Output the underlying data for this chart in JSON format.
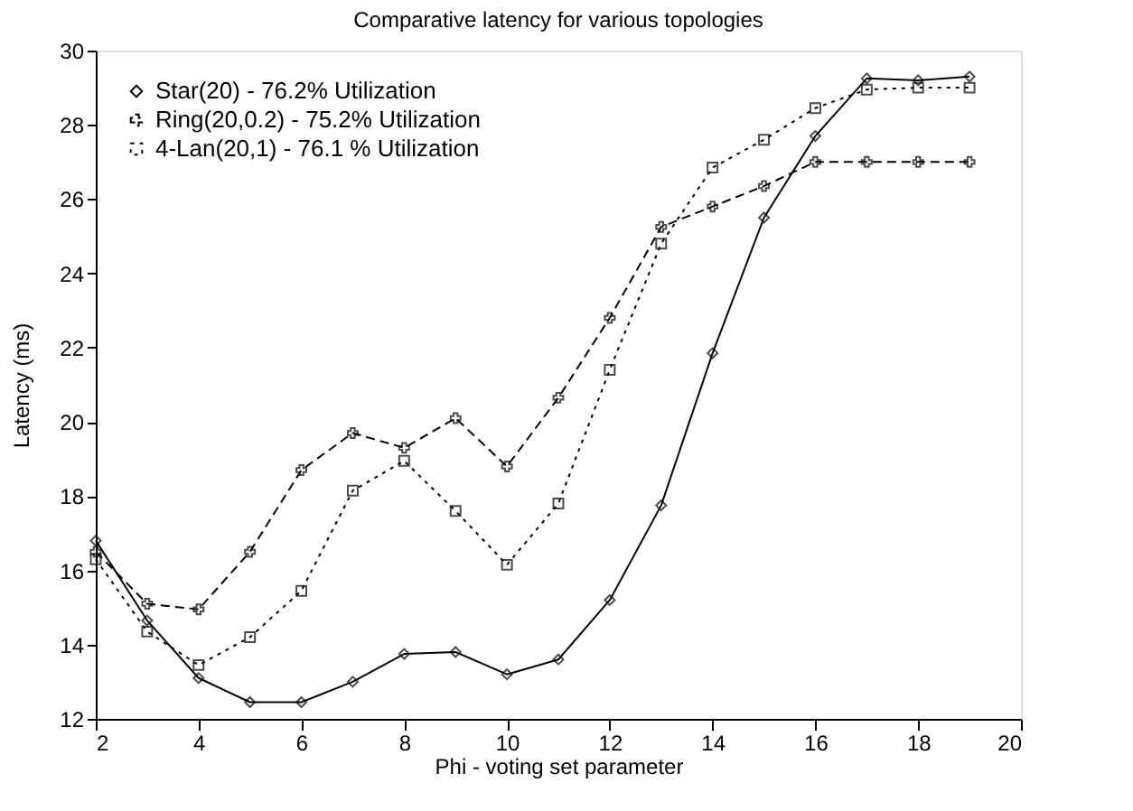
{
  "chart_data": {
    "type": "line",
    "title": "Comparative latency for various topologies",
    "xlabel": "Phi - voting set parameter",
    "ylabel": "Latency (ms)",
    "x": [
      2,
      3,
      4,
      5,
      6,
      7,
      8,
      9,
      10,
      11,
      12,
      13,
      14,
      15,
      16,
      17,
      18,
      19
    ],
    "xlim": [
      2,
      20
    ],
    "xticks": [
      2,
      4,
      6,
      8,
      10,
      12,
      14,
      16,
      18,
      20
    ],
    "ylim": [
      12,
      30
    ],
    "yticks": [
      12,
      14,
      16,
      18,
      20,
      22,
      24,
      26,
      28,
      30
    ],
    "grid": false,
    "legend": "top left",
    "series": [
      {
        "name": "Star(20) - 76.2% Utilization",
        "color": "#000000",
        "marker": "diamond",
        "line_style": "solid",
        "values": [
          16.8,
          14.65,
          13.1,
          12.45,
          12.45,
          13.0,
          13.75,
          13.8,
          13.2,
          13.6,
          15.2,
          17.75,
          21.85,
          25.5,
          27.7,
          29.25,
          29.2,
          29.3
        ]
      },
      {
        "name": "Ring(20,0.2) - 75.2% Utilization",
        "color": "#000000",
        "marker": "cross",
        "line_style": "dashed",
        "values": [
          16.5,
          15.1,
          14.95,
          16.5,
          18.7,
          19.7,
          19.3,
          20.1,
          18.8,
          20.65,
          22.8,
          25.25,
          25.8,
          26.35,
          27.0,
          27.0,
          27.0,
          27.0
        ]
      },
      {
        "name": "4-Lan(20,1) - 76.1 % Utilization",
        "color": "#000000",
        "marker": "square",
        "line_style": "dotted",
        "values": [
          16.3,
          14.35,
          13.45,
          14.2,
          15.45,
          18.15,
          18.95,
          17.6,
          16.15,
          17.8,
          21.4,
          24.8,
          26.85,
          27.6,
          28.45,
          28.95,
          29.0,
          29.0
        ]
      }
    ]
  }
}
